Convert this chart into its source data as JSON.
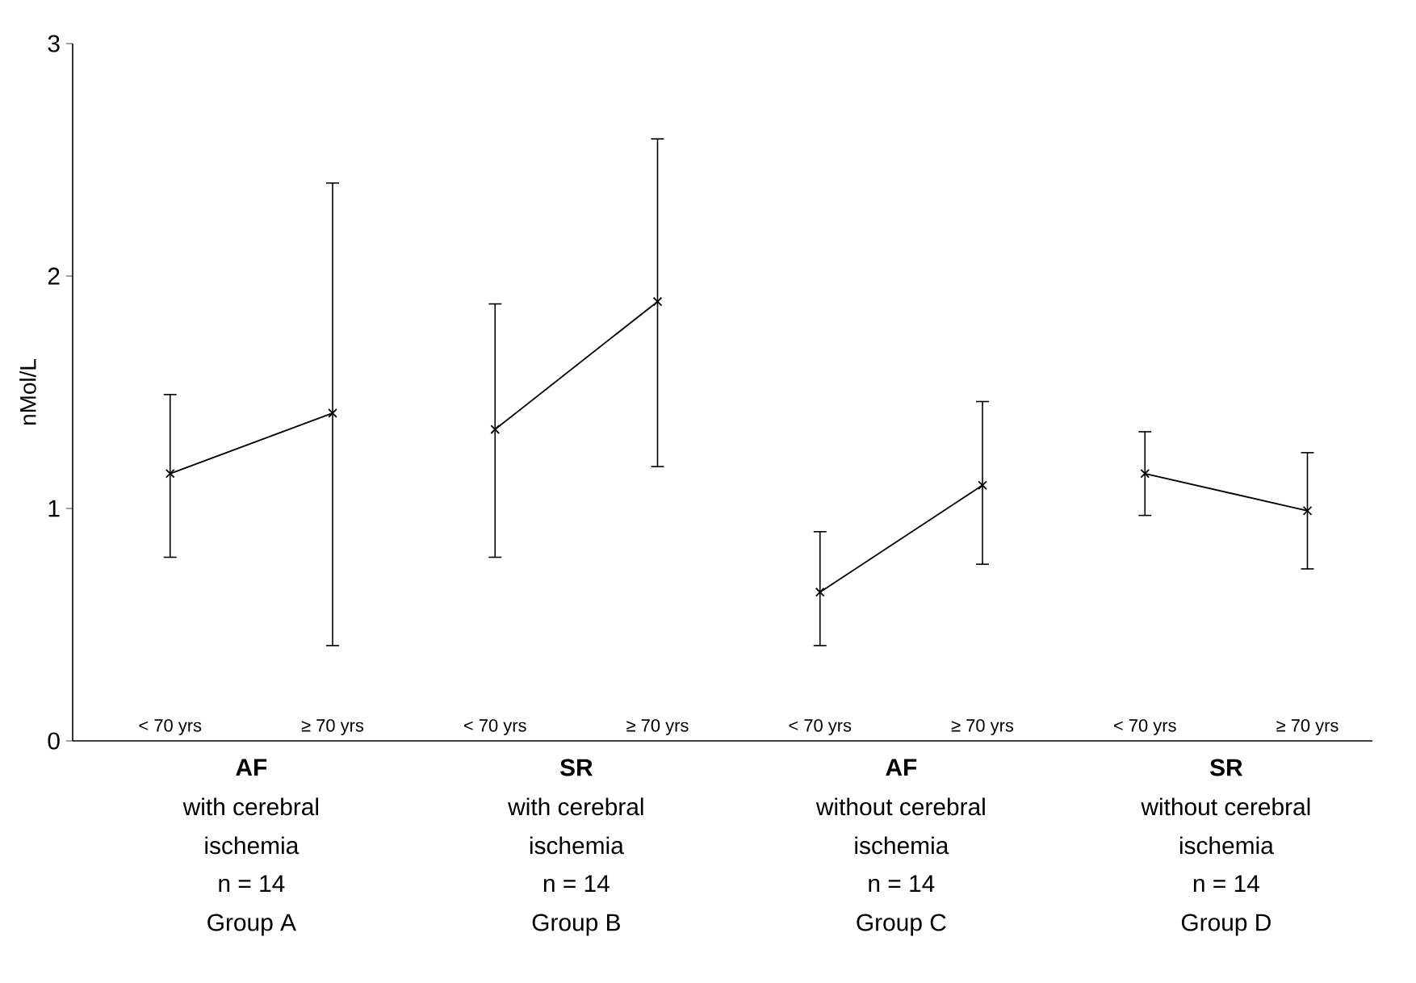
{
  "chart_data": {
    "type": "line",
    "ylabel": "nMol/L",
    "categories": [
      "< 70 yrs",
      "≥ 70 yrs",
      "< 70 yrs",
      "≥ 70 yrs",
      "< 70 yrs",
      "≥ 70 yrs",
      "< 70 yrs",
      "≥ 70 yrs"
    ],
    "series": [
      {
        "color": "#000000",
        "values": [
          1.15,
          1.41,
          null,
          null,
          null,
          null,
          null,
          null
        ],
        "errors": [
          [
            0.79,
            1.49
          ],
          [
            0.41,
            2.4
          ],
          null,
          null,
          null,
          null,
          null,
          null
        ]
      },
      {
        "color": "#000000",
        "values": [
          null,
          null,
          1.34,
          1.89,
          null,
          null,
          null,
          null
        ],
        "errors": [
          null,
          null,
          [
            0.79,
            1.88
          ],
          [
            1.18,
            2.59
          ],
          null,
          null,
          null,
          null
        ]
      },
      {
        "color": "#000000",
        "values": [
          null,
          null,
          null,
          null,
          0.64,
          1.1,
          null,
          null
        ],
        "errors": [
          null,
          null,
          null,
          null,
          [
            0.41,
            0.9
          ],
          [
            0.76,
            1.46
          ],
          null,
          null
        ]
      },
      {
        "color": "#000000",
        "values": [
          null,
          null,
          null,
          null,
          null,
          null,
          1.15,
          0.99
        ],
        "errors": [
          null,
          null,
          null,
          null,
          null,
          null,
          [
            0.97,
            1.33
          ],
          [
            0.74,
            1.24
          ]
        ]
      }
    ],
    "ylim": [
      0,
      3
    ],
    "yticks": [
      0,
      1,
      2,
      3
    ],
    "marker": "cross",
    "line_style": "solid",
    "annotations": [
      "**AF**",
      "with cerebral",
      "ischemia",
      "n = 14",
      "Group A",
      "**SR**",
      "with cerebral",
      "ischemia",
      "n = 14",
      "Group B",
      "**AF**",
      "without cerebral",
      "ischemia",
      "n = 14",
      "Group C",
      "**SR**",
      "without cerebral",
      "ischemia",
      "n = 14",
      "Group D"
    ]
  }
}
